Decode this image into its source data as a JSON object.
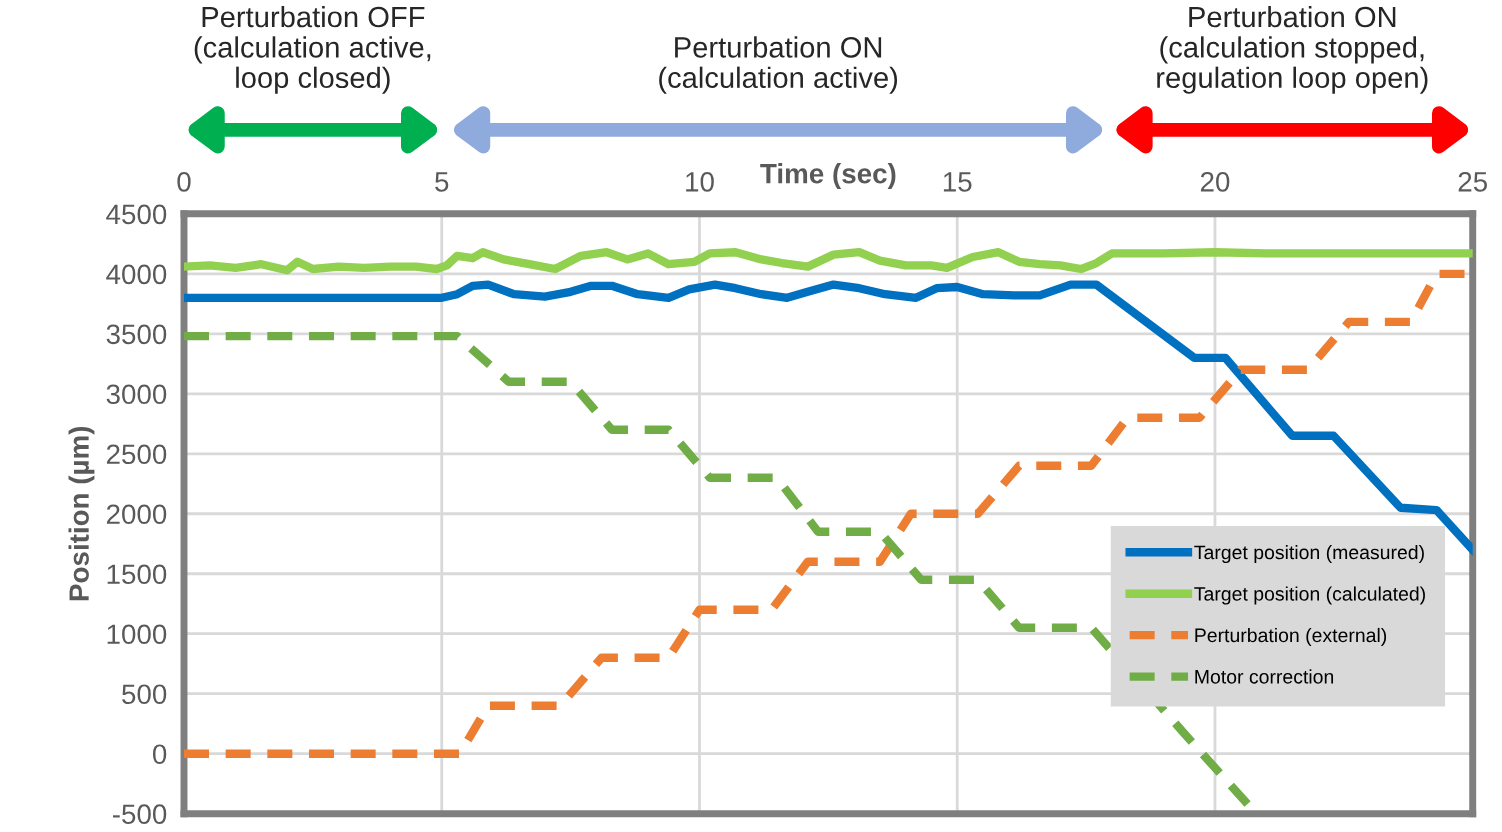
{
  "chart_data": {
    "type": "line",
    "xlabel": "Time (sec)",
    "ylabel": "Position (µm)",
    "xlim": [
      0,
      25
    ],
    "xticks": [
      0,
      5,
      10,
      15,
      20,
      25
    ],
    "ylim": [
      -500,
      4500
    ],
    "yticks": [
      -500,
      0,
      500,
      1000,
      1500,
      2000,
      2500,
      3000,
      3500,
      4000,
      4500
    ],
    "grid": true,
    "legend": "bottom right",
    "annotations": [
      "Perturbation OFF\n(calculation active,\nloop closed)",
      "Perturbation ON\n(calculation active)",
      "Perturbation ON\n(calculation stopped,\nregulation loop open)"
    ],
    "series": [
      {
        "name": "Target position (measured)",
        "color": "#0070c0",
        "line_style": "solid",
        "x": [
          0,
          5,
          5.3,
          5.6,
          5.9,
          6.4,
          7,
          7.5,
          7.9,
          8.3,
          8.8,
          9.4,
          9.8,
          10.3,
          10.7,
          11.2,
          11.7,
          12.1,
          12.6,
          13.1,
          13.6,
          14.2,
          14.6,
          15,
          15.5,
          16.1,
          16.6,
          17.2,
          17.7,
          19.6,
          20.2,
          21.5,
          22.3,
          23.6,
          24.3,
          25
        ],
        "values": [
          3800,
          3800,
          3830,
          3900,
          3910,
          3830,
          3810,
          3850,
          3900,
          3900,
          3830,
          3800,
          3870,
          3910,
          3880,
          3830,
          3800,
          3850,
          3910,
          3880,
          3830,
          3800,
          3880,
          3890,
          3830,
          3820,
          3820,
          3910,
          3910,
          3300,
          3300,
          2650,
          2650,
          2050,
          2030,
          1700
        ]
      },
      {
        "name": "Target position (calculated)",
        "color": "#92d050",
        "line_style": "solid",
        "x": [
          0,
          0.5,
          1,
          1.5,
          2,
          2.2,
          2.5,
          3,
          3.5,
          4,
          4.5,
          4.9,
          5.1,
          5.3,
          5.6,
          5.8,
          6.2,
          6.7,
          7.2,
          7.7,
          8.2,
          8.6,
          9,
          9.4,
          9.9,
          10.2,
          10.7,
          11.2,
          11.6,
          12.1,
          12.6,
          13.1,
          13.5,
          14,
          14.5,
          14.8,
          15.3,
          15.8,
          16.2,
          16.6,
          17,
          17.4,
          17.7,
          18,
          19,
          20,
          21,
          22,
          23,
          24,
          25
        ],
        "values": [
          4060,
          4070,
          4050,
          4080,
          4030,
          4100,
          4040,
          4060,
          4050,
          4060,
          4060,
          4040,
          4070,
          4150,
          4130,
          4180,
          4120,
          4080,
          4040,
          4150,
          4180,
          4120,
          4170,
          4080,
          4100,
          4170,
          4180,
          4120,
          4090,
          4060,
          4160,
          4180,
          4110,
          4070,
          4070,
          4050,
          4140,
          4180,
          4100,
          4080,
          4070,
          4040,
          4090,
          4170,
          4170,
          4180,
          4170,
          4170,
          4170,
          4170,
          4170
        ]
      },
      {
        "name": "Perturbation (external)",
        "color": "#ed7d31",
        "line_style": "dashed",
        "x": [
          0,
          5.35,
          5.9,
          7.3,
          8.1,
          9.4,
          10,
          11.4,
          12.1,
          13.5,
          14.1,
          15.4,
          16.2,
          17.6,
          18.3,
          19.7,
          20.5,
          21.8,
          22.6,
          23.8,
          24.3,
          25
        ],
        "values": [
          0,
          0,
          400,
          400,
          800,
          800,
          1200,
          1200,
          1600,
          1600,
          2000,
          2000,
          2400,
          2400,
          2800,
          2800,
          3200,
          3200,
          3600,
          3600,
          4000,
          4000
        ]
      },
      {
        "name": "Motor correction",
        "color": "#70ad47",
        "line_style": "dashed",
        "x": [
          0,
          5.3,
          6.3,
          7.5,
          8.3,
          9.4,
          10.2,
          11.5,
          12.3,
          13.5,
          14.3,
          15.4,
          16.2,
          17.6,
          19.4,
          20.8
        ],
        "values": [
          3480,
          3480,
          3100,
          3100,
          2700,
          2700,
          2300,
          2300,
          1850,
          1850,
          1450,
          1450,
          1050,
          1050,
          170,
          -500
        ]
      }
    ]
  }
}
